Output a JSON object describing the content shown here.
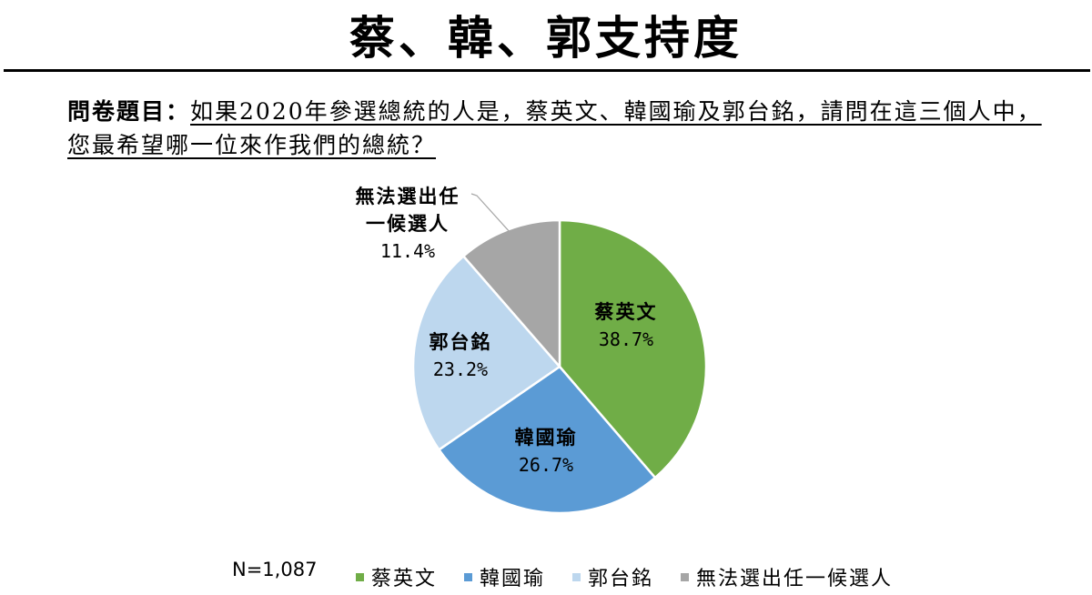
{
  "header": {
    "title": "蔡、韓、郭支持度"
  },
  "question": {
    "label": "問卷題目：",
    "text": "如果2020年參選總統的人是，蔡英文、韓國瑜及郭台銘，請問在這三個人中，您最希望哪一位來作我們的總統？"
  },
  "sample": {
    "n_label": "N=1,087"
  },
  "chart_data": {
    "type": "pie",
    "title": "蔡、韓、郭支持度",
    "start_angle_deg": 0,
    "direction": "clockwise",
    "slices": [
      {
        "key": "tsai",
        "label": "蔡英文",
        "value": 38.7,
        "display": "38.7%",
        "color": "#70ad47"
      },
      {
        "key": "han",
        "label": "韓國瑜",
        "value": 26.7,
        "display": "26.7%",
        "color": "#5b9bd5"
      },
      {
        "key": "kuo",
        "label": "郭台銘",
        "value": 23.2,
        "display": "23.2%",
        "color": "#bdd7ee"
      },
      {
        "key": "none",
        "label": "無法選出任一候選人",
        "label_lines": [
          "無法選出任",
          "一候選人"
        ],
        "value": 11.4,
        "display": "11.4%",
        "color": "#a6a6a6"
      }
    ],
    "legend": {
      "position": "bottom",
      "entries": [
        "蔡英文",
        "韓國瑜",
        "郭台銘",
        "無法選出任一候選人"
      ]
    }
  }
}
